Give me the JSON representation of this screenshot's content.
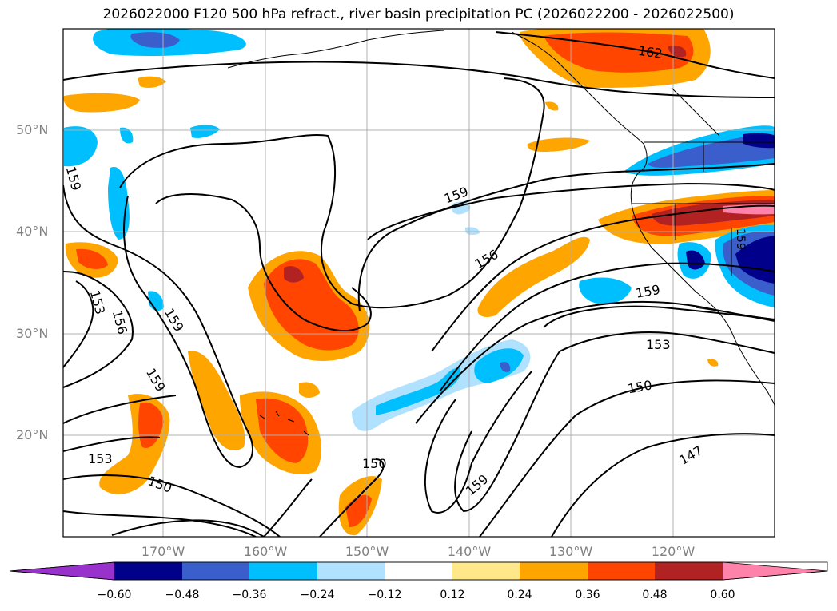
{
  "title": "2026022000 F120 500 hPa refract., river basin precipitation PC (2026022200 - 2026022500)",
  "map": {
    "lat_labels": [
      "50°N",
      "40°N",
      "30°N",
      "20°N"
    ],
    "lon_labels": [
      "170°W",
      "160°W",
      "150°W",
      "140°W",
      "130°W",
      "120°W"
    ],
    "contour_labels": [
      "162",
      "159",
      "159",
      "159",
      "159",
      "159",
      "156",
      "156",
      "153",
      "153",
      "153",
      "150",
      "150",
      "150",
      "147",
      "159",
      "159"
    ]
  },
  "colorbar": {
    "ticks": [
      "−0.60",
      "−0.48",
      "−0.36",
      "−0.24",
      "−0.12",
      "0.12",
      "0.24",
      "0.36",
      "0.48",
      "0.60"
    ],
    "colors": [
      "#9932cc",
      "#00008b",
      "#3a5fcd",
      "#00bfff",
      "#b0e2ff",
      "#ffffff",
      "#ffe88a",
      "#ffa500",
      "#ff4500",
      "#b22222",
      "#ff82ab"
    ]
  }
}
